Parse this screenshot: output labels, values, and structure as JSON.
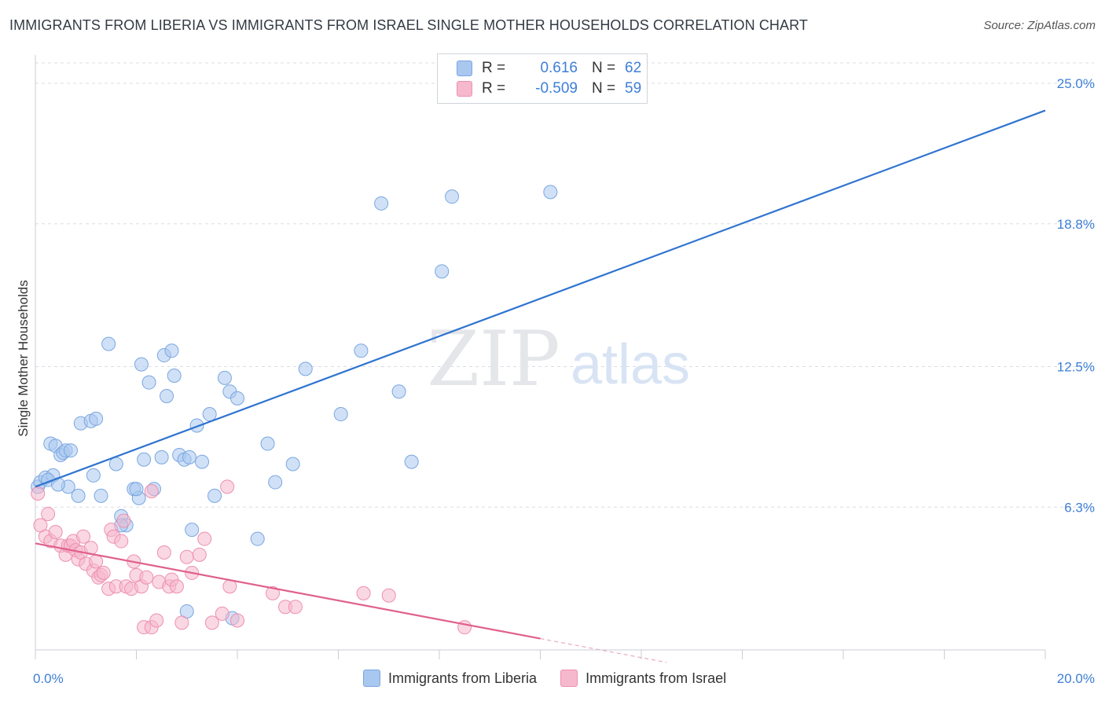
{
  "header": {
    "title": "IMMIGRANTS FROM LIBERIA VS IMMIGRANTS FROM ISRAEL SINGLE MOTHER HOUSEHOLDS CORRELATION CHART",
    "source": "Source: ZipAtlas.com"
  },
  "watermark": {
    "zip": "ZIP",
    "atlas": "atlas"
  },
  "stats": {
    "r_label": "R =",
    "n_label": "N =",
    "liberia": {
      "r": "0.616",
      "n": "62"
    },
    "israel": {
      "r": "-0.509",
      "n": "59"
    }
  },
  "colors": {
    "liberia_fill": "#a9c8f0",
    "liberia_stroke": "#7aa6df",
    "liberia_line": "#2f74d0",
    "israel_fill": "#f6b8cc",
    "israel_stroke": "#ee8fb0",
    "israel_line": "#e0608e"
  },
  "chart_data": {
    "type": "scatter",
    "title": "IMMIGRANTS FROM LIBERIA VS IMMIGRANTS FROM ISRAEL SINGLE MOTHER HOUSEHOLDS CORRELATION CHART",
    "xlabel": "",
    "ylabel": "Single Mother Households",
    "xlim": [
      0,
      20
    ],
    "ylim": [
      0,
      25.9
    ],
    "x_tick_labels": [
      "0.0%",
      "20.0%"
    ],
    "y_ticks": [
      {
        "value": 6.3,
        "label": "6.3%"
      },
      {
        "value": 12.5,
        "label": "12.5%"
      },
      {
        "value": 18.8,
        "label": "18.8%"
      },
      {
        "value": 25.0,
        "label": "25.0%"
      }
    ],
    "legend_position": "bottom",
    "series": [
      {
        "name": "Immigrants from Liberia",
        "x": [
          0.05,
          0.1,
          0.2,
          0.3,
          0.35,
          0.4,
          0.5,
          0.55,
          0.6,
          0.65,
          0.7,
          0.85,
          0.9,
          1.1,
          1.15,
          1.2,
          1.3,
          1.45,
          1.6,
          1.7,
          1.8,
          1.95,
          2.05,
          2.1,
          2.15,
          2.25,
          2.35,
          2.5,
          2.55,
          2.6,
          2.7,
          2.75,
          2.85,
          2.95,
          3.05,
          3.1,
          3.2,
          3.3,
          3.45,
          3.55,
          3.75,
          3.85,
          4.0,
          4.4,
          4.6,
          4.75,
          5.1,
          5.35,
          6.05,
          6.45,
          6.85,
          7.2,
          7.45,
          8.05,
          8.25,
          10.2,
          3.0,
          3.9,
          1.7,
          2.0,
          0.25,
          0.45
        ],
        "y": [
          7.2,
          7.4,
          7.6,
          9.1,
          7.7,
          9.0,
          8.6,
          8.7,
          8.8,
          7.2,
          8.8,
          6.8,
          10.0,
          10.1,
          7.7,
          10.2,
          6.8,
          13.5,
          8.2,
          5.9,
          5.5,
          7.1,
          6.7,
          12.6,
          8.4,
          11.8,
          7.1,
          8.5,
          13.0,
          11.2,
          13.2,
          12.1,
          8.6,
          8.4,
          8.5,
          5.3,
          9.9,
          8.3,
          10.4,
          6.8,
          12.0,
          11.4,
          11.1,
          4.9,
          9.1,
          7.4,
          8.2,
          12.4,
          10.4,
          13.2,
          19.7,
          11.4,
          8.3,
          16.7,
          20.0,
          20.2,
          1.7,
          1.4,
          5.5,
          7.1,
          7.5,
          7.3
        ]
      },
      {
        "name": "Immigrants from Israel",
        "x": [
          0.05,
          0.1,
          0.2,
          0.25,
          0.3,
          0.4,
          0.5,
          0.6,
          0.65,
          0.7,
          0.75,
          0.8,
          0.85,
          0.9,
          0.95,
          1.0,
          1.1,
          1.15,
          1.2,
          1.25,
          1.3,
          1.35,
          1.45,
          1.5,
          1.55,
          1.6,
          1.7,
          1.75,
          1.8,
          1.9,
          1.95,
          2.0,
          2.1,
          2.15,
          2.2,
          2.3,
          2.4,
          2.45,
          2.55,
          2.65,
          2.7,
          2.8,
          2.9,
          3.0,
          3.1,
          3.25,
          3.35,
          3.5,
          3.7,
          3.8,
          3.85,
          4.0,
          4.7,
          4.95,
          5.15,
          6.5,
          7.0,
          8.5,
          2.3
        ],
        "y": [
          6.9,
          5.5,
          5.0,
          6.0,
          4.8,
          5.2,
          4.6,
          4.2,
          4.6,
          4.6,
          4.8,
          4.4,
          4.0,
          4.3,
          5.0,
          3.8,
          4.5,
          3.5,
          3.9,
          3.2,
          3.3,
          3.4,
          2.7,
          5.3,
          5.0,
          2.8,
          4.8,
          5.7,
          2.8,
          2.7,
          3.9,
          3.3,
          2.8,
          1.0,
          3.2,
          1.0,
          1.3,
          3.0,
          4.3,
          2.8,
          3.1,
          2.8,
          1.2,
          4.1,
          3.4,
          4.2,
          4.9,
          1.2,
          1.6,
          7.2,
          2.8,
          1.3,
          2.5,
          1.9,
          1.9,
          2.5,
          2.4,
          1.0,
          7.0
        ]
      }
    ],
    "trendlines": [
      {
        "series": "Immigrants from Liberia",
        "x": [
          0.0,
          20.0
        ],
        "y": [
          7.2,
          23.8
        ]
      },
      {
        "series": "Immigrants from Israel",
        "x": [
          0.0,
          10.0
        ],
        "y": [
          4.7,
          0.5
        ]
      }
    ]
  },
  "legend": {
    "liberia": "Immigrants from Liberia",
    "israel": "Immigrants from Israel"
  }
}
